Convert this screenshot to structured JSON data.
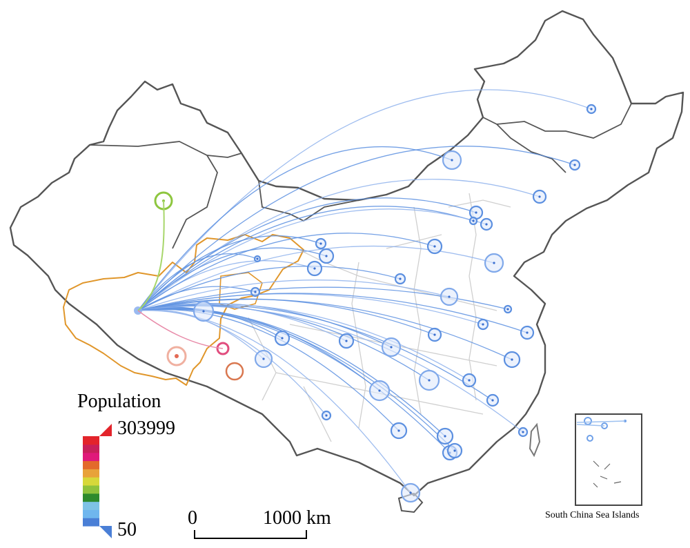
{
  "legend": {
    "title": "Population",
    "max_label": "303999",
    "min_label": "50",
    "colors": [
      "#4a7fd6",
      "#6fb6ee",
      "#7ec3e6",
      "#2d8a2d",
      "#8fc23c",
      "#d7d83a",
      "#e8a23a",
      "#e36a2b",
      "#e0197a",
      "#c8205a",
      "#e3242b"
    ]
  },
  "scale_bar": {
    "zero_label": "0",
    "max_label": "1000 km"
  },
  "inset": {
    "label": "South China Sea Islands"
  },
  "colors": {
    "flow_default": "#5b8fe0",
    "flow_low": "#7ea7e8",
    "highlight_region": "#e0962a",
    "border": "#555555",
    "province_border": "#c8c8c8",
    "origin_green": "#8ec63f",
    "origin_pink": "#e14d7e",
    "origin_orange": "#d9774f",
    "origin_salmon": "#ec9a8a"
  }
}
